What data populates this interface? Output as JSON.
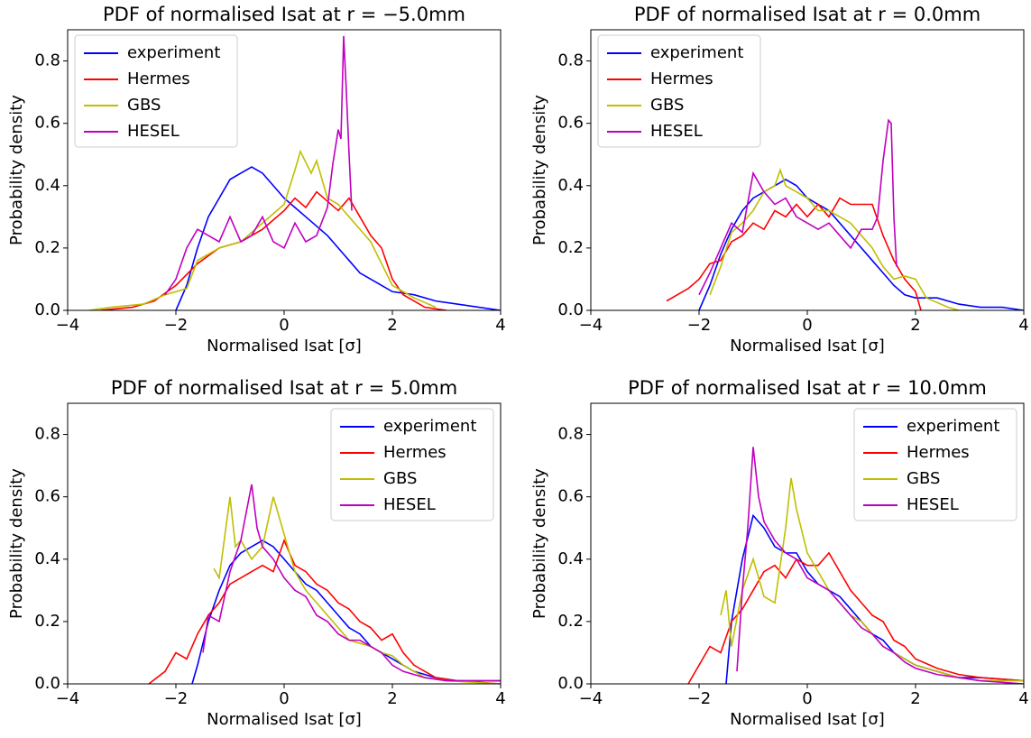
{
  "chart_data": [
    {
      "type": "line",
      "title": "PDF of normalised Isat at r = −5.0mm",
      "xlabel": "Normalised Isat [σ]",
      "ylabel": "Probability density",
      "xlim": [
        -4,
        4
      ],
      "ylim": [
        0,
        0.9
      ],
      "xticks": [
        {
          "value": -4,
          "label": "−4"
        },
        {
          "value": -2,
          "label": "−2"
        },
        0,
        2,
        4
      ],
      "yticks": [
        {
          "value": 0,
          "label": "0.0"
        },
        0.2,
        0.4,
        0.6,
        0.8
      ],
      "legend": "upper left",
      "series": [
        {
          "name": "experiment",
          "color": "#0000ff",
          "x": [
            -2,
            -1.8,
            -1.6,
            -1.4,
            -1.2,
            -1,
            -0.8,
            -0.6,
            -0.4,
            -0.2,
            0,
            0.2,
            0.4,
            0.6,
            0.8,
            1,
            1.2,
            1.4,
            1.6,
            1.8,
            2,
            2.4,
            2.8,
            3.2,
            3.6,
            4
          ],
          "values": [
            0,
            0.08,
            0.2,
            0.3,
            0.36,
            0.42,
            0.44,
            0.46,
            0.44,
            0.4,
            0.36,
            0.33,
            0.3,
            0.27,
            0.24,
            0.2,
            0.16,
            0.12,
            0.1,
            0.08,
            0.06,
            0.05,
            0.03,
            0.02,
            0.01,
            0
          ]
        },
        {
          "name": "Hermes",
          "color": "#ff0000",
          "x": [
            -3.4,
            -2.8,
            -2.4,
            -2,
            -1.6,
            -1.2,
            -0.8,
            -0.4,
            0,
            0.2,
            0.4,
            0.6,
            0.8,
            1,
            1.2,
            1.4,
            1.6,
            1.8,
            2,
            2.2,
            2.6,
            3
          ],
          "values": [
            0,
            0.01,
            0.03,
            0.08,
            0.15,
            0.2,
            0.22,
            0.26,
            0.32,
            0.36,
            0.33,
            0.38,
            0.35,
            0.32,
            0.36,
            0.3,
            0.24,
            0.2,
            0.1,
            0.05,
            0.01,
            0
          ]
        },
        {
          "name": "GBS",
          "color": "#bfbf00",
          "x": [
            -3.6,
            -3.2,
            -2.6,
            -2.2,
            -1.8,
            -1.6,
            -1.2,
            -0.8,
            -0.4,
            0,
            0.2,
            0.3,
            0.5,
            0.6,
            0.8,
            1,
            1.2,
            1.4,
            1.6,
            1.8,
            2,
            2.4,
            2.8
          ],
          "values": [
            0,
            0.01,
            0.02,
            0.05,
            0.07,
            0.16,
            0.2,
            0.22,
            0.28,
            0.34,
            0.45,
            0.51,
            0.44,
            0.48,
            0.36,
            0.34,
            0.3,
            0.26,
            0.22,
            0.15,
            0.08,
            0.04,
            0.01
          ]
        },
        {
          "name": "HESEL",
          "color": "#bf00bf",
          "x": [
            -2.2,
            -2,
            -1.8,
            -1.6,
            -1.4,
            -1.2,
            -1,
            -0.8,
            -0.6,
            -0.4,
            -0.2,
            0,
            0.2,
            0.4,
            0.6,
            0.8,
            0.9,
            1,
            1.05,
            1.1,
            1.15,
            1.2,
            1.25
          ],
          "values": [
            0.05,
            0.1,
            0.2,
            0.26,
            0.24,
            0.22,
            0.3,
            0.22,
            0.24,
            0.3,
            0.22,
            0.2,
            0.28,
            0.22,
            0.24,
            0.33,
            0.47,
            0.58,
            0.55,
            0.88,
            0.7,
            0.5,
            0.32
          ]
        }
      ]
    },
    {
      "type": "line",
      "title": "PDF of normalised Isat at r = 0.0mm",
      "xlabel": "Normalised Isat [σ]",
      "ylabel": "Probability density",
      "xlim": [
        -4,
        4
      ],
      "ylim": [
        0,
        0.9
      ],
      "xticks": [
        {
          "value": -4,
          "label": "−4"
        },
        {
          "value": -2,
          "label": "−2"
        },
        0,
        2,
        4
      ],
      "yticks": [
        {
          "value": 0,
          "label": "0.0"
        },
        0.2,
        0.4,
        0.6,
        0.8
      ],
      "legend": "upper left",
      "series": [
        {
          "name": "experiment",
          "color": "#0000ff",
          "x": [
            -2,
            -1.8,
            -1.6,
            -1.4,
            -1.2,
            -1,
            -0.8,
            -0.6,
            -0.4,
            -0.2,
            0,
            0.2,
            0.4,
            0.6,
            0.8,
            1,
            1.2,
            1.4,
            1.6,
            1.8,
            2,
            2.4,
            2.8,
            3.2,
            3.6,
            4
          ],
          "values": [
            0,
            0.08,
            0.18,
            0.26,
            0.32,
            0.36,
            0.38,
            0.4,
            0.42,
            0.4,
            0.36,
            0.34,
            0.32,
            0.28,
            0.24,
            0.2,
            0.16,
            0.12,
            0.08,
            0.05,
            0.04,
            0.04,
            0.02,
            0.01,
            0.01,
            0
          ]
        },
        {
          "name": "Hermes",
          "color": "#ff0000",
          "x": [
            -2.6,
            -2.4,
            -2.2,
            -2,
            -1.8,
            -1.6,
            -1.4,
            -1.2,
            -1,
            -0.8,
            -0.6,
            -0.4,
            -0.2,
            0,
            0.2,
            0.4,
            0.6,
            0.8,
            1,
            1.2,
            1.4,
            1.6,
            1.8,
            2,
            2.1
          ],
          "values": [
            0.03,
            0.05,
            0.07,
            0.1,
            0.15,
            0.16,
            0.22,
            0.24,
            0.28,
            0.26,
            0.32,
            0.3,
            0.34,
            0.3,
            0.34,
            0.3,
            0.36,
            0.34,
            0.34,
            0.34,
            0.24,
            0.16,
            0.1,
            0.06,
            0
          ]
        },
        {
          "name": "GBS",
          "color": "#bfbf00",
          "x": [
            -1.8,
            -1.6,
            -1.4,
            -1.2,
            -1,
            -0.8,
            -0.6,
            -0.5,
            -0.4,
            -0.2,
            0,
            0.2,
            0.4,
            0.6,
            0.8,
            1,
            1.2,
            1.4,
            1.6,
            1.8,
            2,
            2.2,
            2.6,
            2.8
          ],
          "values": [
            0.05,
            0.14,
            0.25,
            0.28,
            0.32,
            0.38,
            0.4,
            0.45,
            0.4,
            0.38,
            0.36,
            0.32,
            0.32,
            0.3,
            0.28,
            0.24,
            0.2,
            0.14,
            0.1,
            0.11,
            0.1,
            0.04,
            0.01,
            0
          ]
        },
        {
          "name": "HESEL",
          "color": "#bf00bf",
          "x": [
            -2,
            -1.8,
            -1.6,
            -1.4,
            -1.2,
            -1,
            -0.8,
            -0.6,
            -0.4,
            -0.2,
            0,
            0.2,
            0.4,
            0.6,
            0.8,
            1,
            1.2,
            1.3,
            1.4,
            1.5,
            1.55,
            1.6,
            1.65
          ],
          "values": [
            0.05,
            0.12,
            0.2,
            0.28,
            0.25,
            0.44,
            0.38,
            0.34,
            0.36,
            0.3,
            0.28,
            0.26,
            0.28,
            0.24,
            0.2,
            0.26,
            0.26,
            0.3,
            0.48,
            0.61,
            0.6,
            0.3,
            0.14
          ]
        }
      ]
    },
    {
      "type": "line",
      "title": "PDF of normalised Isat at r = 5.0mm",
      "xlabel": "Normalised Isat [σ]",
      "ylabel": "Probability density",
      "xlim": [
        -4,
        4
      ],
      "ylim": [
        0,
        0.9
      ],
      "xticks": [
        {
          "value": -4,
          "label": "−4"
        },
        {
          "value": -2,
          "label": "−2"
        },
        0,
        2,
        4
      ],
      "yticks": [
        {
          "value": 0,
          "label": "0.0"
        },
        0.2,
        0.4,
        0.6,
        0.8
      ],
      "legend": "upper right",
      "series": [
        {
          "name": "experiment",
          "color": "#0000ff",
          "x": [
            -1.7,
            -1.6,
            -1.4,
            -1.2,
            -1,
            -0.8,
            -0.6,
            -0.4,
            -0.2,
            0,
            0.2,
            0.4,
            0.6,
            0.8,
            1,
            1.2,
            1.4,
            1.6,
            1.8,
            2,
            2.2,
            2.4,
            2.8,
            3.2,
            4
          ],
          "values": [
            0,
            0.06,
            0.2,
            0.3,
            0.38,
            0.42,
            0.44,
            0.46,
            0.44,
            0.4,
            0.36,
            0.32,
            0.3,
            0.26,
            0.22,
            0.18,
            0.16,
            0.12,
            0.1,
            0.08,
            0.06,
            0.04,
            0.02,
            0.01,
            0.01
          ]
        },
        {
          "name": "Hermes",
          "color": "#ff0000",
          "x": [
            -2.5,
            -2.2,
            -2,
            -1.8,
            -1.6,
            -1.4,
            -1.2,
            -1,
            -0.8,
            -0.6,
            -0.4,
            -0.2,
            0,
            0.2,
            0.4,
            0.6,
            0.8,
            1,
            1.2,
            1.4,
            1.6,
            1.8,
            2,
            2.2,
            2.4,
            2.8,
            3.2,
            4
          ],
          "values": [
            0,
            0.04,
            0.1,
            0.08,
            0.16,
            0.22,
            0.26,
            0.32,
            0.34,
            0.36,
            0.38,
            0.36,
            0.46,
            0.38,
            0.36,
            0.32,
            0.3,
            0.26,
            0.24,
            0.2,
            0.18,
            0.14,
            0.16,
            0.1,
            0.06,
            0.02,
            0.01,
            0
          ]
        },
        {
          "name": "GBS",
          "color": "#bfbf00",
          "x": [
            -1.3,
            -1.2,
            -1,
            -0.9,
            -0.8,
            -0.6,
            -0.4,
            -0.2,
            0,
            0.2,
            0.4,
            0.6,
            0.8,
            1,
            1.2,
            1.4,
            1.6,
            1.8,
            2,
            2.2,
            2.6,
            3,
            4
          ],
          "values": [
            0.37,
            0.34,
            0.6,
            0.44,
            0.46,
            0.4,
            0.44,
            0.6,
            0.48,
            0.36,
            0.3,
            0.26,
            0.22,
            0.18,
            0.14,
            0.13,
            0.12,
            0.1,
            0.09,
            0.06,
            0.02,
            0.01,
            0
          ]
        },
        {
          "name": "HESEL",
          "color": "#bf00bf",
          "x": [
            -1.5,
            -1.4,
            -1.2,
            -1,
            -0.8,
            -0.6,
            -0.5,
            -0.4,
            -0.2,
            0,
            0.2,
            0.4,
            0.6,
            0.8,
            1,
            1.2,
            1.4,
            1.6,
            1.8,
            2,
            2.2,
            2.6,
            3,
            4
          ],
          "values": [
            0.1,
            0.22,
            0.2,
            0.36,
            0.46,
            0.64,
            0.5,
            0.44,
            0.4,
            0.34,
            0.3,
            0.28,
            0.22,
            0.2,
            0.16,
            0.14,
            0.14,
            0.12,
            0.1,
            0.06,
            0.04,
            0.02,
            0.01,
            0.01
          ]
        }
      ]
    },
    {
      "type": "line",
      "title": "PDF of normalised Isat at r = 10.0mm",
      "xlabel": "Normalised Isat [σ]",
      "ylabel": "Probability density",
      "xlim": [
        -4,
        4
      ],
      "ylim": [
        0,
        0.9
      ],
      "xticks": [
        {
          "value": -4,
          "label": "−4"
        },
        {
          "value": -2,
          "label": "−2"
        },
        0,
        2,
        4
      ],
      "yticks": [
        {
          "value": 0,
          "label": "0.0"
        },
        0.2,
        0.4,
        0.6,
        0.8
      ],
      "legend": "upper right",
      "series": [
        {
          "name": "experiment",
          "color": "#0000ff",
          "x": [
            -1.5,
            -1.4,
            -1.2,
            -1,
            -0.8,
            -0.6,
            -0.4,
            -0.2,
            0,
            0.2,
            0.4,
            0.6,
            0.8,
            1,
            1.2,
            1.4,
            1.6,
            1.8,
            2,
            2.4,
            2.8,
            3.2,
            4
          ],
          "values": [
            0,
            0.2,
            0.4,
            0.54,
            0.5,
            0.44,
            0.42,
            0.42,
            0.36,
            0.32,
            0.3,
            0.28,
            0.24,
            0.2,
            0.16,
            0.14,
            0.1,
            0.08,
            0.06,
            0.04,
            0.02,
            0.02,
            0.01
          ]
        },
        {
          "name": "Hermes",
          "color": "#ff0000",
          "x": [
            -2.2,
            -2,
            -1.8,
            -1.6,
            -1.4,
            -1.2,
            -1,
            -0.8,
            -0.6,
            -0.4,
            -0.2,
            0,
            0.2,
            0.4,
            0.6,
            0.8,
            1,
            1.2,
            1.4,
            1.6,
            1.8,
            2,
            2.4,
            2.8,
            3.2,
            4
          ],
          "values": [
            0,
            0.06,
            0.12,
            0.1,
            0.2,
            0.24,
            0.3,
            0.36,
            0.38,
            0.34,
            0.4,
            0.38,
            0.38,
            0.42,
            0.36,
            0.3,
            0.26,
            0.22,
            0.2,
            0.14,
            0.12,
            0.08,
            0.05,
            0.03,
            0.02,
            0.01
          ]
        },
        {
          "name": "GBS",
          "color": "#bfbf00",
          "x": [
            -1.6,
            -1.5,
            -1.4,
            -1.2,
            -1,
            -0.8,
            -0.6,
            -0.4,
            -0.3,
            -0.2,
            0,
            0.2,
            0.4,
            0.6,
            0.8,
            1,
            1.2,
            1.4,
            1.6,
            1.8,
            2,
            2.4,
            2.8,
            3.2,
            4
          ],
          "values": [
            0.22,
            0.3,
            0.12,
            0.3,
            0.4,
            0.28,
            0.26,
            0.5,
            0.66,
            0.56,
            0.42,
            0.36,
            0.3,
            0.26,
            0.22,
            0.2,
            0.16,
            0.12,
            0.1,
            0.08,
            0.06,
            0.04,
            0.02,
            0.01,
            0.01
          ]
        },
        {
          "name": "HESEL",
          "color": "#bf00bf",
          "x": [
            -1.3,
            -1.2,
            -1.1,
            -1,
            -0.9,
            -0.8,
            -0.6,
            -0.4,
            -0.2,
            0,
            0.2,
            0.4,
            0.6,
            0.8,
            1,
            1.2,
            1.4,
            1.6,
            1.8,
            2,
            2.4,
            2.8,
            3.2,
            4
          ],
          "values": [
            0.04,
            0.3,
            0.5,
            0.76,
            0.6,
            0.52,
            0.46,
            0.42,
            0.4,
            0.34,
            0.32,
            0.3,
            0.26,
            0.22,
            0.18,
            0.16,
            0.12,
            0.1,
            0.07,
            0.05,
            0.03,
            0.02,
            0.01,
            0
          ]
        }
      ]
    }
  ]
}
